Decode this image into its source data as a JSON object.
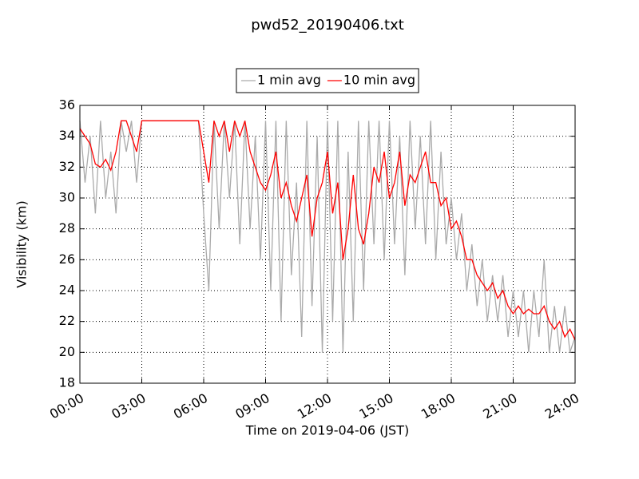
{
  "chart_data": {
    "type": "line",
    "title": "pwd52_20190406.txt",
    "xlabel": "Time on 2019-04-06 (JST)",
    "ylabel": "Visibility (km)",
    "x": [
      0,
      0.25,
      0.5,
      0.75,
      1,
      1.25,
      1.5,
      1.75,
      2,
      2.25,
      2.5,
      2.75,
      3,
      3.25,
      3.5,
      3.75,
      4,
      4.25,
      4.5,
      4.75,
      5,
      5.25,
      5.5,
      5.75,
      6,
      6.25,
      6.5,
      6.75,
      7,
      7.25,
      7.5,
      7.75,
      8,
      8.25,
      8.5,
      8.75,
      9,
      9.25,
      9.5,
      9.75,
      10,
      10.25,
      10.5,
      10.75,
      11,
      11.25,
      11.5,
      11.75,
      12,
      12.25,
      12.5,
      12.75,
      13,
      13.25,
      13.5,
      13.75,
      14,
      14.25,
      14.5,
      14.75,
      15,
      15.25,
      15.5,
      15.75,
      16,
      16.25,
      16.5,
      16.75,
      17,
      17.25,
      17.5,
      17.75,
      18,
      18.25,
      18.5,
      18.75,
      19,
      19.25,
      19.5,
      19.75,
      20,
      20.25,
      20.5,
      20.75,
      21,
      21.25,
      21.5,
      21.75,
      22,
      22.25,
      22.5,
      22.75,
      23,
      23.25,
      23.5,
      23.75,
      24
    ],
    "series": [
      {
        "name": "1 min avg",
        "color": "#aaaaaa",
        "values": [
          35,
          31,
          34,
          29,
          35,
          30,
          33,
          29,
          35,
          33,
          35,
          31,
          35,
          35,
          35,
          35,
          35,
          35,
          35,
          35,
          35,
          35,
          35,
          35,
          29,
          24,
          35,
          28,
          35,
          30,
          35,
          27,
          35,
          28,
          34,
          26,
          35,
          24,
          35,
          22,
          35,
          25,
          31,
          21,
          35,
          23,
          34,
          20,
          35,
          22,
          35,
          20,
          33,
          22,
          35,
          24,
          35,
          27,
          35,
          26,
          35,
          27,
          34,
          25,
          35,
          28,
          34,
          27,
          35,
          26,
          33,
          27,
          30,
          26,
          29,
          24,
          27,
          23,
          26,
          22,
          25,
          22,
          25,
          21,
          24,
          21,
          24,
          20,
          24,
          21,
          26,
          20,
          23,
          20,
          23,
          20,
          21
        ]
      },
      {
        "name": "10 min avg",
        "color": "#ff0000",
        "values": [
          34.5,
          34,
          33.5,
          32.2,
          32,
          32.5,
          31.8,
          33,
          35,
          35,
          34,
          33,
          35,
          35,
          35,
          35,
          35,
          35,
          35,
          35,
          35,
          35,
          35,
          35,
          33,
          31,
          35,
          34,
          35,
          33,
          35,
          34,
          35,
          33,
          32,
          31,
          30.5,
          31.5,
          33,
          30,
          31,
          29.5,
          28.5,
          30,
          31.5,
          27.5,
          30,
          31,
          33,
          29,
          31,
          26,
          28,
          31.5,
          28,
          27,
          29,
          32,
          31,
          33,
          30,
          31,
          33,
          29.5,
          31.5,
          31,
          32,
          33,
          31,
          31,
          29.5,
          30,
          28,
          28.5,
          27.5,
          26,
          26,
          25,
          24.5,
          24,
          24.5,
          23.5,
          24,
          23,
          22.5,
          23,
          22.5,
          22.8,
          22.5,
          22.5,
          23,
          22,
          21.5,
          22,
          21,
          21.5,
          20.8
        ]
      }
    ],
    "xlim": [
      0,
      24
    ],
    "xticks": [
      {
        "value": 0,
        "label": "00:00"
      },
      {
        "value": 3,
        "label": "03:00"
      },
      {
        "value": 6,
        "label": "06:00"
      },
      {
        "value": 9,
        "label": "09:00"
      },
      {
        "value": 12,
        "label": "12:00"
      },
      {
        "value": 15,
        "label": "15:00"
      },
      {
        "value": 18,
        "label": "18:00"
      },
      {
        "value": 21,
        "label": "21:00"
      },
      {
        "value": 24,
        "label": "24:00"
      }
    ],
    "ylim": [
      18,
      36
    ],
    "yticks": [
      18,
      20,
      22,
      24,
      26,
      28,
      30,
      32,
      34,
      36
    ],
    "grid": true,
    "legend": "top"
  }
}
